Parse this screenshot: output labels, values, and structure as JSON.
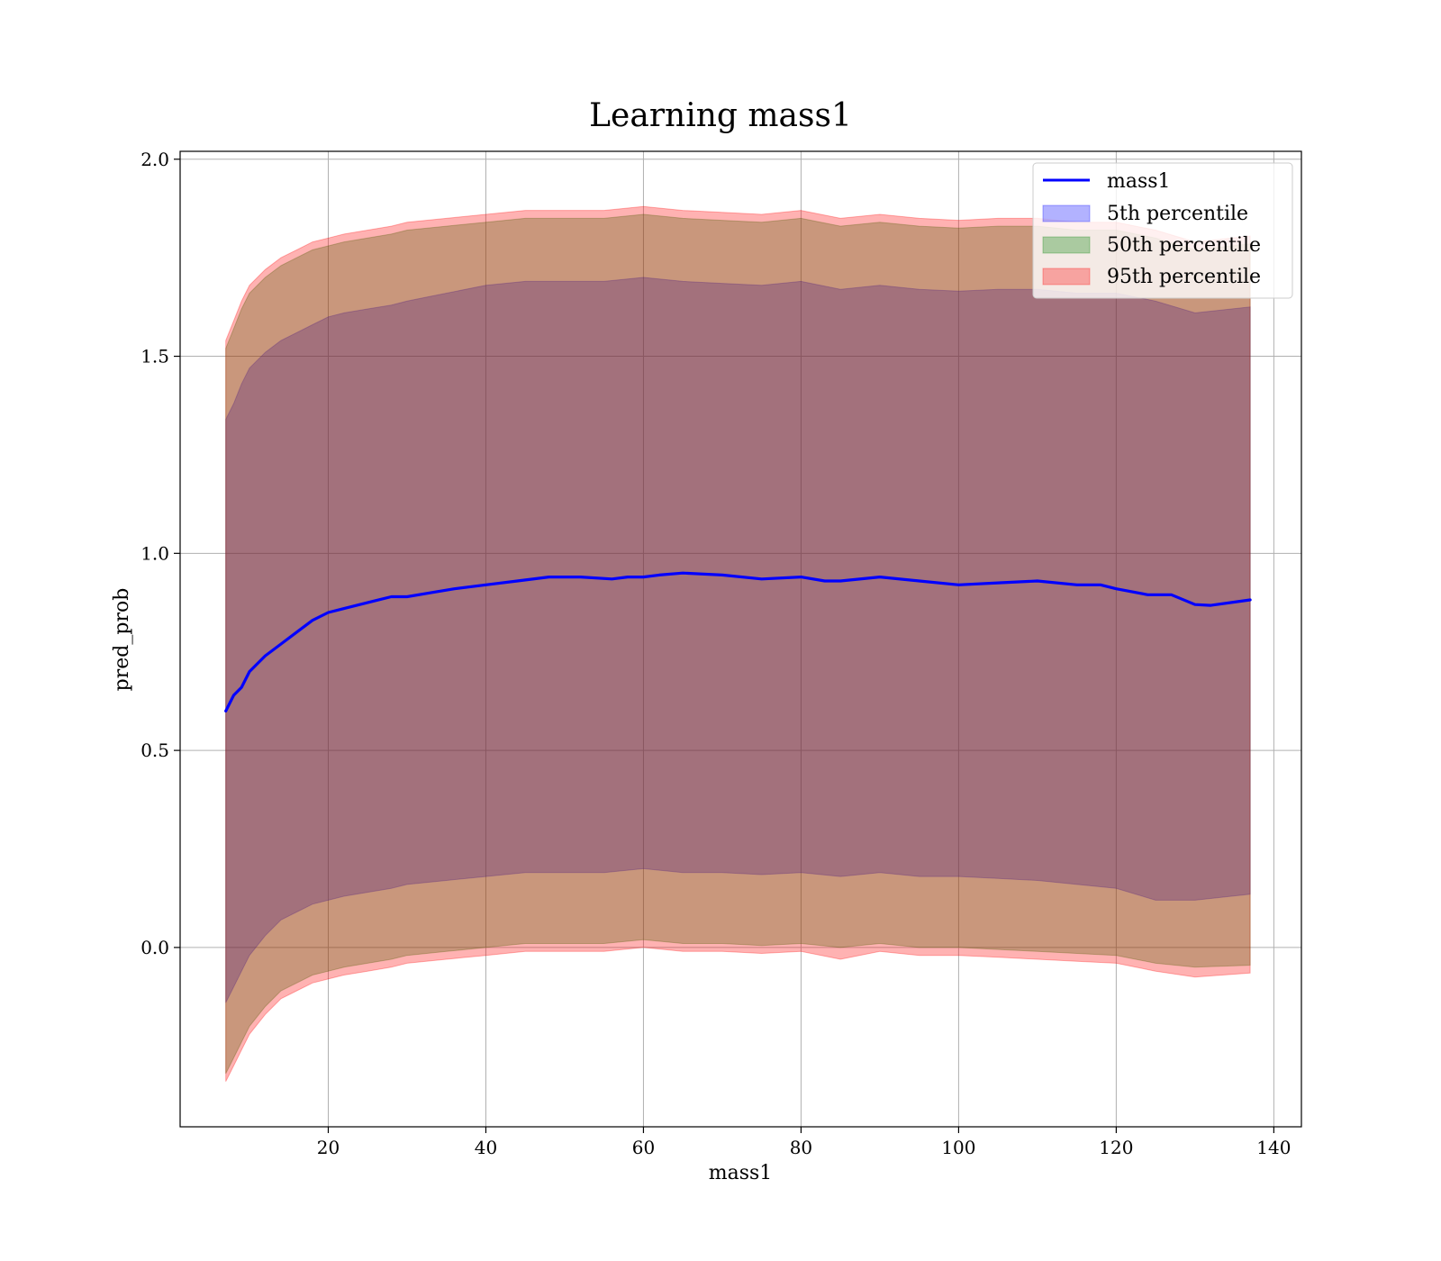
{
  "chart_data": {
    "type": "line",
    "title": "Learning mass1",
    "xlabel": "mass1",
    "ylabel": "pred_prob",
    "xlim": [
      1.2,
      143.5
    ],
    "ylim": [
      -0.455,
      2.02
    ],
    "x_ticks": [
      20,
      40,
      60,
      80,
      100,
      120,
      140
    ],
    "y_ticks": [
      0.0,
      0.5,
      1.0,
      1.5,
      2.0
    ],
    "x_tick_labels": [
      "20",
      "40",
      "60",
      "80",
      "100",
      "120",
      "140"
    ],
    "y_tick_labels": [
      "0.0",
      "0.5",
      "1.0",
      "1.5",
      "2.0"
    ],
    "grid": true,
    "legend_position": "top-right",
    "series": [
      {
        "name": "mass1",
        "kind": "line",
        "color": "#0000ff",
        "x": [
          7,
          8,
          9,
          10,
          12,
          14,
          16,
          18,
          20,
          22,
          24,
          26,
          28,
          30,
          33,
          36,
          40,
          44,
          48,
          52,
          56,
          58,
          60,
          62,
          65,
          70,
          75,
          80,
          83,
          85,
          90,
          95,
          100,
          105,
          110,
          115,
          118,
          120,
          124,
          127,
          130,
          132,
          137
        ],
        "y": [
          0.6,
          0.64,
          0.66,
          0.7,
          0.74,
          0.77,
          0.8,
          0.83,
          0.85,
          0.86,
          0.87,
          0.88,
          0.89,
          0.89,
          0.9,
          0.91,
          0.92,
          0.93,
          0.94,
          0.94,
          0.935,
          0.94,
          0.94,
          0.945,
          0.95,
          0.945,
          0.935,
          0.94,
          0.93,
          0.93,
          0.94,
          0.93,
          0.92,
          0.925,
          0.93,
          0.92,
          0.92,
          0.91,
          0.895,
          0.895,
          0.87,
          0.868,
          0.882
        ]
      },
      {
        "name": "5th percentile",
        "kind": "band",
        "color": "#0000ff",
        "x": [
          7,
          8,
          9,
          10,
          12,
          14,
          16,
          18,
          20,
          22,
          25,
          28,
          30,
          35,
          40,
          45,
          50,
          55,
          60,
          65,
          70,
          75,
          80,
          85,
          90,
          95,
          100,
          105,
          110,
          115,
          120,
          125,
          130,
          137
        ],
        "low": [
          -0.14,
          -0.1,
          -0.06,
          -0.02,
          0.03,
          0.07,
          0.09,
          0.11,
          0.12,
          0.13,
          0.14,
          0.15,
          0.16,
          0.17,
          0.18,
          0.19,
          0.19,
          0.19,
          0.2,
          0.19,
          0.19,
          0.185,
          0.19,
          0.18,
          0.19,
          0.18,
          0.18,
          0.175,
          0.17,
          0.16,
          0.15,
          0.12,
          0.12,
          0.135
        ],
        "high": [
          1.34,
          1.38,
          1.43,
          1.47,
          1.51,
          1.54,
          1.56,
          1.58,
          1.6,
          1.61,
          1.62,
          1.63,
          1.64,
          1.66,
          1.68,
          1.69,
          1.69,
          1.69,
          1.7,
          1.69,
          1.685,
          1.68,
          1.69,
          1.67,
          1.68,
          1.67,
          1.665,
          1.67,
          1.67,
          1.66,
          1.66,
          1.64,
          1.61,
          1.625
        ]
      },
      {
        "name": "50th percentile",
        "kind": "band",
        "color": "#008000",
        "x": [
          7,
          8,
          9,
          10,
          12,
          14,
          16,
          18,
          20,
          22,
          25,
          28,
          30,
          35,
          40,
          45,
          50,
          55,
          60,
          65,
          70,
          75,
          80,
          85,
          90,
          95,
          100,
          105,
          110,
          115,
          120,
          125,
          130,
          137
        ],
        "low": [
          -0.32,
          -0.28,
          -0.24,
          -0.2,
          -0.15,
          -0.11,
          -0.09,
          -0.07,
          -0.06,
          -0.05,
          -0.04,
          -0.03,
          -0.02,
          -0.01,
          0.0,
          0.01,
          0.01,
          0.01,
          0.02,
          0.01,
          0.01,
          0.005,
          0.01,
          0.0,
          0.01,
          0.0,
          0.0,
          -0.005,
          -0.01,
          -0.015,
          -0.02,
          -0.04,
          -0.05,
          -0.045
        ],
        "high": [
          1.52,
          1.57,
          1.62,
          1.66,
          1.7,
          1.73,
          1.75,
          1.77,
          1.78,
          1.79,
          1.8,
          1.81,
          1.82,
          1.83,
          1.84,
          1.85,
          1.85,
          1.85,
          1.86,
          1.85,
          1.845,
          1.84,
          1.85,
          1.83,
          1.84,
          1.83,
          1.825,
          1.83,
          1.83,
          1.82,
          1.82,
          1.8,
          1.77,
          1.785
        ]
      },
      {
        "name": "95th percentile",
        "kind": "band",
        "color": "#ff0000",
        "x": [
          7,
          8,
          9,
          10,
          12,
          14,
          16,
          18,
          20,
          22,
          25,
          28,
          30,
          35,
          40,
          45,
          50,
          55,
          60,
          65,
          70,
          75,
          80,
          85,
          90,
          95,
          100,
          105,
          110,
          115,
          120,
          125,
          130,
          137
        ],
        "low": [
          -0.34,
          -0.3,
          -0.26,
          -0.22,
          -0.17,
          -0.13,
          -0.11,
          -0.09,
          -0.08,
          -0.07,
          -0.06,
          -0.05,
          -0.04,
          -0.03,
          -0.02,
          -0.01,
          -0.01,
          -0.01,
          0.0,
          -0.01,
          -0.01,
          -0.015,
          -0.01,
          -0.03,
          -0.01,
          -0.02,
          -0.02,
          -0.025,
          -0.03,
          -0.035,
          -0.04,
          -0.06,
          -0.075,
          -0.065
        ],
        "high": [
          1.54,
          1.59,
          1.64,
          1.68,
          1.72,
          1.75,
          1.77,
          1.79,
          1.8,
          1.81,
          1.82,
          1.83,
          1.84,
          1.85,
          1.86,
          1.87,
          1.87,
          1.87,
          1.88,
          1.87,
          1.865,
          1.86,
          1.87,
          1.85,
          1.86,
          1.85,
          1.845,
          1.85,
          1.85,
          1.84,
          1.84,
          1.82,
          1.79,
          1.805
        ]
      }
    ]
  }
}
